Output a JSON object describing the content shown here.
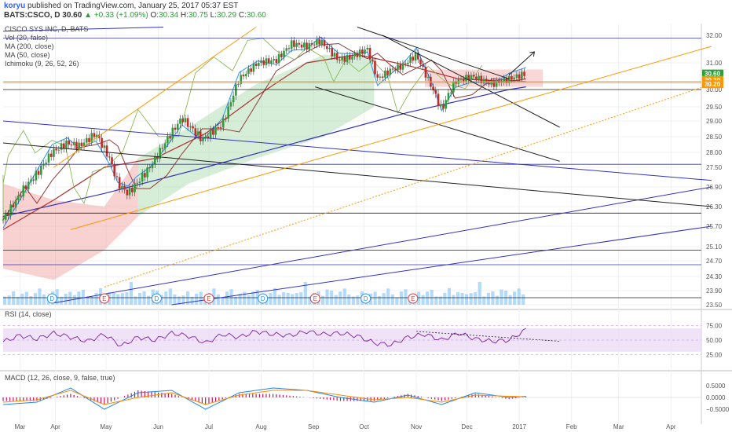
{
  "header": {
    "author": "koryu",
    "published": "published on TradingView.com, January 25, 2017 05:37 EST",
    "symbol": "BATS:CSCO, D",
    "last": "30.60",
    "arrow": "▲",
    "change": "+0.33 (+1.09%)",
    "open_label": "O:",
    "open": "30.34",
    "high_label": "H:",
    "high": "30.75",
    "low_label": "L:",
    "low": "30.29",
    "close_label": "C:",
    "close": "30.60"
  },
  "main_legend": [
    "CISCO SYS INC, D, BATS",
    "Vol (20, false)",
    "MA (200, close)",
    "MA (50, close)",
    "Ichimoku (9, 26, 52, 26)"
  ],
  "rsi_legend": "RSI (14, close)",
  "macd_legend": "MACD (12, 26, close, 9, false, true)",
  "colors": {
    "up": "#2e9e3a",
    "down": "#c62828",
    "ma200": "#3333bb",
    "ma50": "#b03030",
    "tenkan": "#2196f3",
    "kijun": "#8d3b3b",
    "chikou": "#7cb342",
    "cloud_up": "#a5d6a7",
    "cloud_dn": "#ef9a9a",
    "volume": "#90caf9",
    "rsi": "#7b1fa2",
    "macd": "#1e88e5",
    "signal": "#fb8c00",
    "hist": "#c2185b",
    "channel": "#ff9800",
    "trend_blue": "#3333bb",
    "trend_black": "#222222"
  },
  "price_badges": [
    {
      "label": "30.60",
      "value": 30.6,
      "color": "#2e9e3a"
    },
    {
      "label": "30.30",
      "value": 30.3,
      "color": "#ff9800"
    },
    {
      "label": "30.20",
      "value": 30.2,
      "color": "#ff9800"
    }
  ],
  "event_markers": [
    {
      "symbol": "D",
      "day": 29,
      "color": "#2196f3"
    },
    {
      "symbol": "E",
      "day": 60,
      "color": "#e53935"
    },
    {
      "symbol": "D",
      "day": 91,
      "color": "#2196f3"
    },
    {
      "symbol": "E",
      "day": 122,
      "color": "#e53935"
    },
    {
      "symbol": "D",
      "day": 154,
      "color": "#2196f3"
    },
    {
      "symbol": "E",
      "day": 185,
      "color": "#e53935"
    },
    {
      "symbol": "D",
      "day": 215,
      "color": "#2196f3"
    },
    {
      "symbol": "E",
      "day": 243,
      "color": "#e53935"
    }
  ],
  "chart_data": [
    {
      "type": "line",
      "name": "CISCO SYS INC, D, BATS",
      "x_axis": {
        "tick_labels": [
          "Mar",
          "Apr",
          "May",
          "Jun",
          "Jul",
          "Aug",
          "Sep",
          "Oct",
          "Nov",
          "Dec",
          "2017",
          "Feb",
          "Mar",
          "Apr"
        ],
        "tick_days": [
          10,
          31,
          61,
          92,
          122,
          153,
          184,
          214,
          245,
          275,
          306,
          337,
          365,
          396
        ]
      },
      "y_axis": {
        "range": [
          23.5,
          32.3
        ],
        "ticks": [
          32.0,
          31.0,
          30.0,
          29.5,
          29.0,
          28.5,
          28.0,
          27.5,
          26.9,
          26.3,
          25.7,
          25.1,
          24.7,
          24.3,
          23.9,
          23.5
        ]
      },
      "grid": true,
      "close_series": {
        "x": [
          0,
          13,
          20,
          29,
          38,
          45,
          55,
          63,
          68,
          74,
          79,
          87,
          97,
          106,
          118,
          130,
          140,
          151,
          162,
          171,
          180,
          188,
          199,
          206,
          216,
          222,
          229,
          237,
          245,
          254,
          260,
          268,
          278,
          290,
          300,
          310
        ],
        "y": [
          25.9,
          26.9,
          27.3,
          28.0,
          28.3,
          28.2,
          28.6,
          27.8,
          27.0,
          26.7,
          27.0,
          27.5,
          28.4,
          29.1,
          28.4,
          28.9,
          30.4,
          31.0,
          31.1,
          31.7,
          31.6,
          31.8,
          31.1,
          31.2,
          31.5,
          30.4,
          30.7,
          30.9,
          31.3,
          30.1,
          29.4,
          30.3,
          30.5,
          30.2,
          30.4,
          30.6
        ]
      },
      "ma200": {
        "x": [
          0,
          60,
          120,
          180,
          240,
          300,
          310
        ],
        "y": [
          26.0,
          26.7,
          27.5,
          28.4,
          29.3,
          30.0,
          30.1
        ]
      },
      "ma50": {
        "x": [
          0,
          30,
          60,
          90,
          120,
          150,
          180,
          210,
          240,
          270,
          300,
          310
        ],
        "y": [
          25.6,
          26.5,
          27.5,
          27.8,
          28.6,
          29.8,
          31.0,
          31.3,
          30.9,
          30.4,
          30.3,
          30.4
        ]
      },
      "volume_axis_range": [
        0,
        40
      ],
      "volume": [
        10,
        7,
        12,
        9,
        8,
        11,
        9,
        8,
        13,
        10,
        9,
        10,
        14,
        9,
        8,
        11,
        10,
        9,
        12,
        8,
        10,
        9,
        15,
        11,
        9,
        10,
        11,
        8,
        10,
        22,
        10,
        9,
        12,
        10,
        11,
        12,
        10,
        9,
        13,
        10
      ]
    },
    {
      "type": "line",
      "name": "RSI (14, close)",
      "y_axis": {
        "ticks": [
          75.0,
          50.0,
          25.0
        ],
        "range": [
          0,
          100
        ]
      },
      "band": [
        30,
        70
      ],
      "x": [
        0,
        10,
        20,
        30,
        40,
        50,
        60,
        70,
        80,
        90,
        100,
        110,
        120,
        130,
        140,
        150,
        160,
        170,
        180,
        190,
        200,
        210,
        220,
        230,
        240,
        250,
        260,
        270,
        280,
        290,
        300,
        310
      ],
      "y": [
        47,
        58,
        52,
        62,
        55,
        48,
        60,
        40,
        55,
        50,
        62,
        57,
        45,
        60,
        55,
        65,
        60,
        58,
        65,
        60,
        62,
        57,
        45,
        42,
        55,
        60,
        50,
        62,
        52,
        48,
        50,
        68
      ]
    },
    {
      "type": "line",
      "name": "MACD (12, 26, close, 9, false, true)",
      "y_axis": {
        "ticks": [
          0.5,
          0.0,
          -0.5
        ],
        "range": [
          -1.0,
          1.0
        ]
      },
      "x": [
        0,
        20,
        40,
        60,
        80,
        100,
        120,
        140,
        160,
        180,
        200,
        220,
        240,
        260,
        280,
        300,
        310
      ],
      "macd": [
        -0.3,
        -0.2,
        0.4,
        -0.5,
        0.2,
        0.3,
        -0.5,
        0.2,
        0.4,
        0.3,
        0.0,
        -0.2,
        0.1,
        -0.3,
        0.2,
        0.0,
        0.05
      ],
      "signal": [
        -0.2,
        -0.1,
        0.3,
        -0.3,
        0.0,
        0.2,
        -0.3,
        0.1,
        0.3,
        0.3,
        0.1,
        -0.1,
        0.0,
        -0.2,
        0.1,
        0.05,
        0.03
      ]
    }
  ]
}
